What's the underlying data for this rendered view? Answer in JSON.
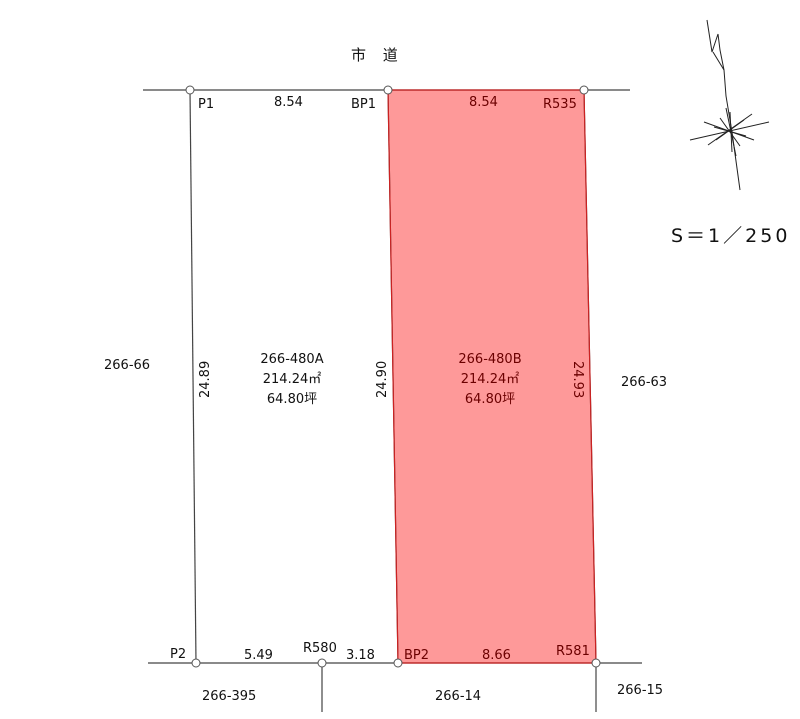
{
  "road": {
    "label": "市 道"
  },
  "scale": {
    "label": "S＝1／250"
  },
  "colors": {
    "highlight_fill": "#fe9999",
    "highlight_stroke": "#cc2222",
    "line": "#444444"
  },
  "icons": {
    "north_arrow": "north-arrow-icon"
  },
  "points": {
    "p1": "P1",
    "bp1": "BP1",
    "r535": "R535",
    "p2": "P2",
    "r580": "R580",
    "bp2": "BP2",
    "r581": "R581"
  },
  "dimensions": {
    "top_left": "8.54",
    "top_right": "8.54",
    "left_side": "24.89",
    "middle_side": "24.90",
    "right_side": "24.93",
    "bottom_left": "5.49",
    "bottom_mid": "3.18",
    "bottom_right": "8.66"
  },
  "lots": {
    "a": {
      "id": "266-480A",
      "area_m2": "214.24㎡",
      "area_tsubo": "64.80坪"
    },
    "b": {
      "id": "266-480B",
      "area_m2": "214.24㎡",
      "area_tsubo": "64.80坪"
    }
  },
  "neighbors": {
    "left": "266-66",
    "right": "266-63",
    "bottom_left": "266-395",
    "bottom_mid": "266-14",
    "bottom_right": "266-15"
  }
}
